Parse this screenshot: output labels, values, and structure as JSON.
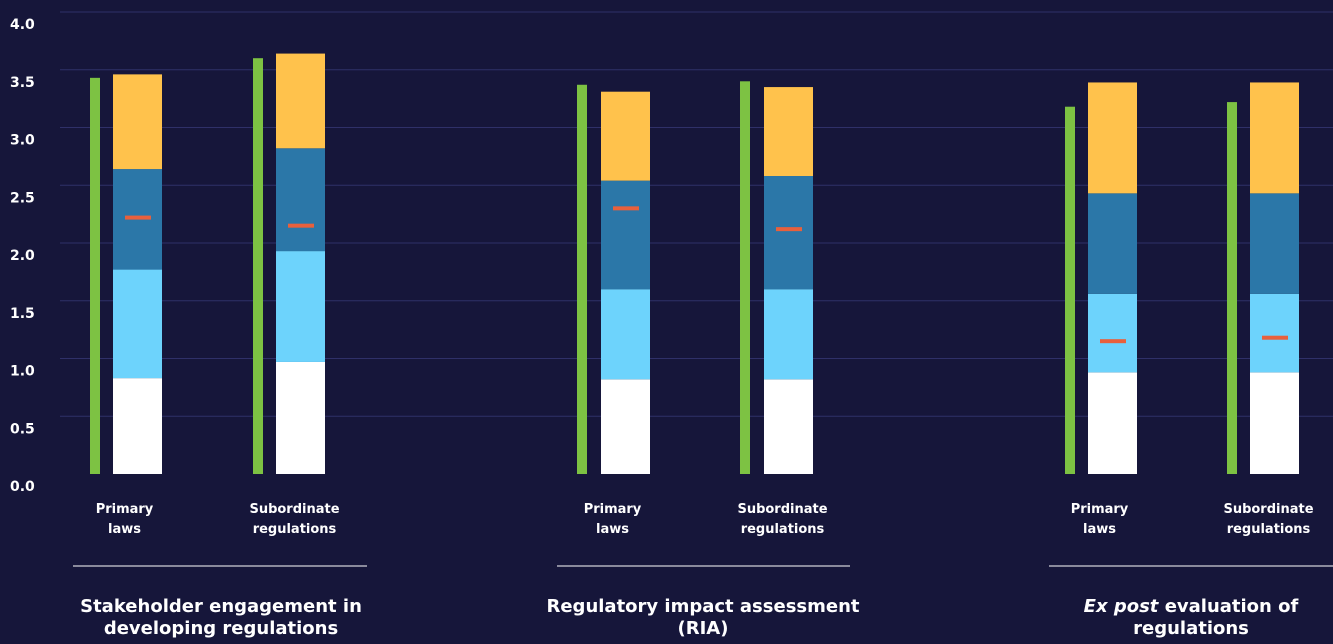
{
  "colors": {
    "background": "#16163a",
    "grid": "#2f3068",
    "separator": "#ffffff",
    "green_bar": "#7dc243",
    "segment_bottom": "#ffffff",
    "segment_2": "#6dd3fc",
    "segment_3": "#2b77a8",
    "segment_top": "#ffc24c",
    "mean_marker": "#e8603c"
  },
  "chart_data": {
    "type": "bar",
    "ylim": [
      0,
      4
    ],
    "yticks": [
      "0.0",
      "0.5",
      "1.0",
      "1.5",
      "2.0",
      "2.5",
      "3.0",
      "3.5",
      "4.0"
    ],
    "grid": true,
    "groups": [
      {
        "title_italic": "",
        "title_text": "Stakeholder engagement in developing regulations",
        "categories": [
          {
            "label_line1": "Primary",
            "label_line2": "laws",
            "green_value": 3.43,
            "stack": [
              0.83,
              0.94,
              0.87,
              0.82
            ],
            "marker": 2.22
          },
          {
            "label_line1": "Subordinate",
            "label_line2": "regulations",
            "green_value": 3.6,
            "stack": [
              0.97,
              0.96,
              0.89,
              0.82
            ],
            "marker": 2.15
          }
        ]
      },
      {
        "title_italic": "",
        "title_text": "Regulatory impact assessment (RIA)",
        "categories": [
          {
            "label_line1": "Primary",
            "label_line2": "laws",
            "green_value": 3.37,
            "stack": [
              0.82,
              0.78,
              0.94,
              0.77
            ],
            "marker": 2.3
          },
          {
            "label_line1": "Subordinate",
            "label_line2": "regulations",
            "green_value": 3.4,
            "stack": [
              0.82,
              0.78,
              0.98,
              0.77
            ],
            "marker": 2.12
          }
        ]
      },
      {
        "title_italic": "Ex post",
        "title_text": "evaluation of regulations",
        "categories": [
          {
            "label_line1": "Primary",
            "label_line2": "laws",
            "green_value": 3.18,
            "stack": [
              0.88,
              0.68,
              0.87,
              0.96
            ],
            "marker": 1.15
          },
          {
            "label_line1": "Subordinate",
            "label_line2": "regulations",
            "green_value": 3.22,
            "stack": [
              0.88,
              0.68,
              0.87,
              0.96
            ],
            "marker": 1.18
          }
        ]
      }
    ]
  }
}
